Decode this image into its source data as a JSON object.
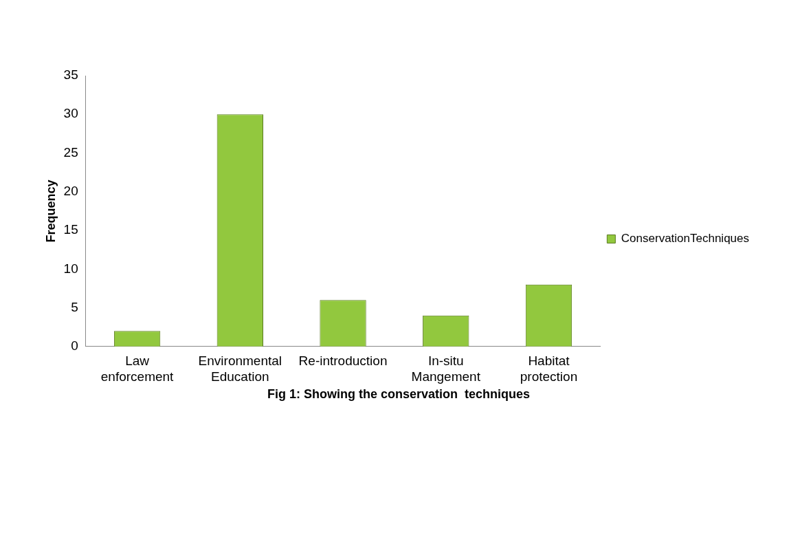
{
  "chart_data": {
    "type": "bar",
    "title": "Fig 1: Showing the conservation  techniques",
    "ylabel": "Frequency",
    "categories": [
      "Law enforcement",
      "Environmental Education",
      "Re-introduction",
      "In-situ Mangement",
      "Habitat protection"
    ],
    "series": [
      {
        "name": "ConservationTechniques",
        "color": "#92c83e",
        "values": [
          2,
          30,
          6,
          4,
          8
        ]
      }
    ],
    "ylim": [
      0,
      35
    ],
    "yticks": [
      0,
      5,
      10,
      15,
      20,
      25,
      30,
      35
    ],
    "grid": false,
    "legend": "right"
  }
}
